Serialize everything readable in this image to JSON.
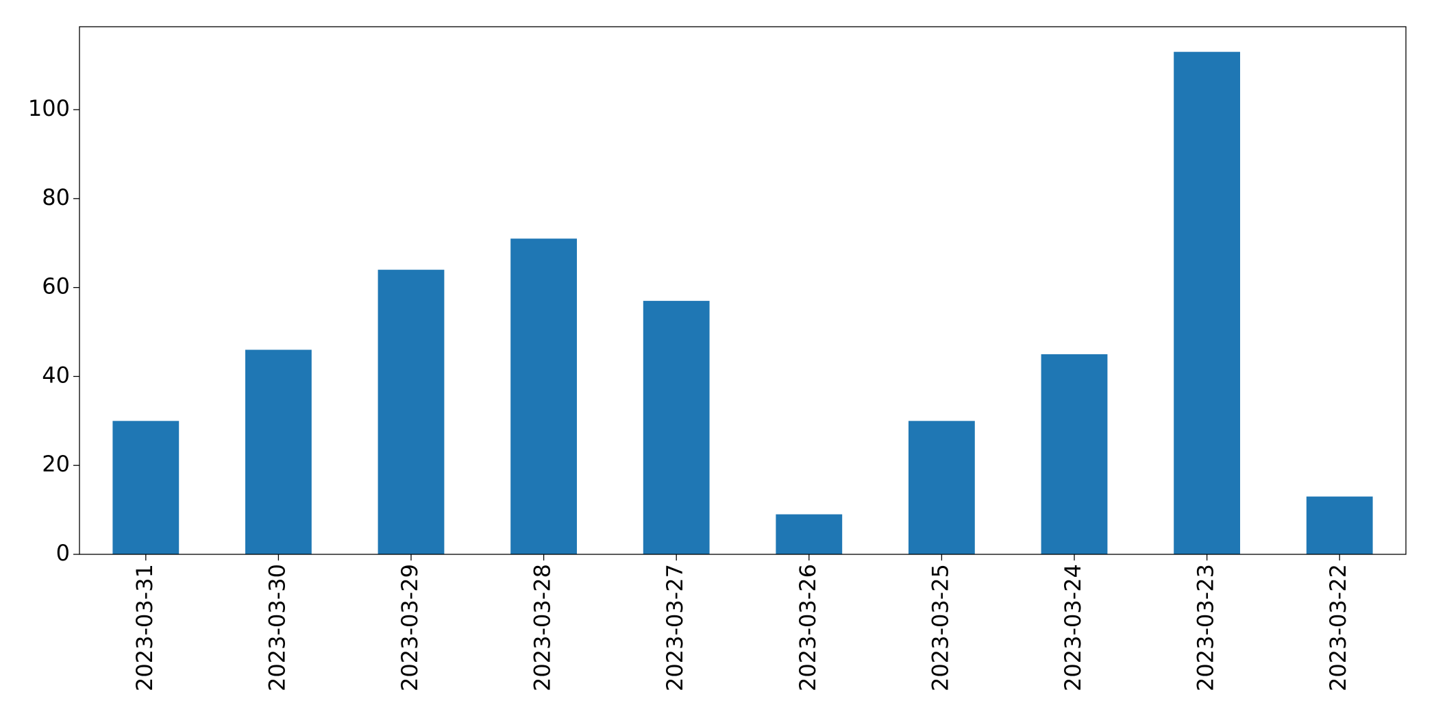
{
  "chart_data": {
    "type": "bar",
    "categories": [
      "2023-03-31",
      "2023-03-30",
      "2023-03-29",
      "2023-03-28",
      "2023-03-27",
      "2023-03-26",
      "2023-03-25",
      "2023-03-24",
      "2023-03-23",
      "2023-03-22"
    ],
    "values": [
      30,
      46,
      64,
      71,
      57,
      9,
      30,
      45,
      113,
      13
    ],
    "color": "#1f77b4",
    "ylim": [
      0,
      118.65
    ],
    "yticks": [
      0,
      20,
      40,
      60,
      80,
      100
    ]
  }
}
